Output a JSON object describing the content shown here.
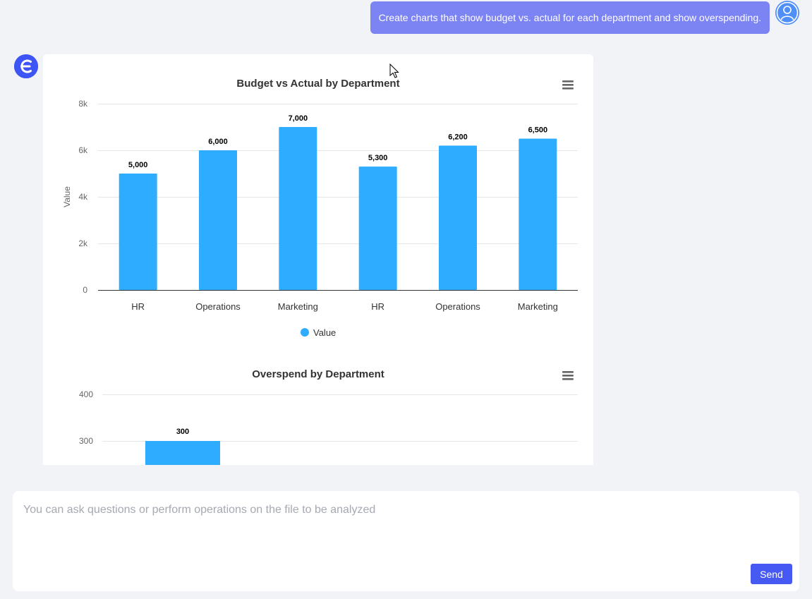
{
  "user_message": {
    "text": "Create charts that show budget vs. actual for each department and show overspending."
  },
  "composer": {
    "placeholder": "You can ask questions or perform operations on the file to be analyzed",
    "send_label": "Send"
  },
  "icons": {
    "user_avatar": "user-icon",
    "bot_avatar": "assistant-logo-icon",
    "chart_menu": "hamburger-menu-icon"
  },
  "colors": {
    "bar": "#2eacff",
    "user_bubble": "#7c83f3",
    "send_button": "#4759f3",
    "bot_avatar": "#3d55f5"
  },
  "chart_data": [
    {
      "type": "bar",
      "title": "Budget vs Actual by Department",
      "xlabel": "",
      "ylabel": "Value",
      "categories": [
        "HR",
        "Operations",
        "Marketing",
        "HR",
        "Operations",
        "Marketing"
      ],
      "series": [
        {
          "name": "Value",
          "values": [
            5000,
            6000,
            7000,
            5300,
            6200,
            6500
          ]
        }
      ],
      "data_labels": [
        "5,000",
        "6,000",
        "7,000",
        "5,300",
        "6,200",
        "6,500"
      ],
      "y_ticks": [
        "0",
        "2k",
        "4k",
        "6k",
        "8k"
      ],
      "ylim": [
        0,
        8000
      ],
      "grid": true,
      "legend": "bottom-center"
    },
    {
      "type": "bar",
      "title": "Overspend by Department",
      "xlabel": "",
      "ylabel": "",
      "categories": [
        ""
      ],
      "series": [
        {
          "values": [
            300
          ]
        }
      ],
      "data_labels": [
        "300"
      ],
      "y_ticks": [
        "300",
        "400"
      ],
      "ylim": [
        0,
        400
      ],
      "grid": true,
      "legend": "none"
    }
  ]
}
